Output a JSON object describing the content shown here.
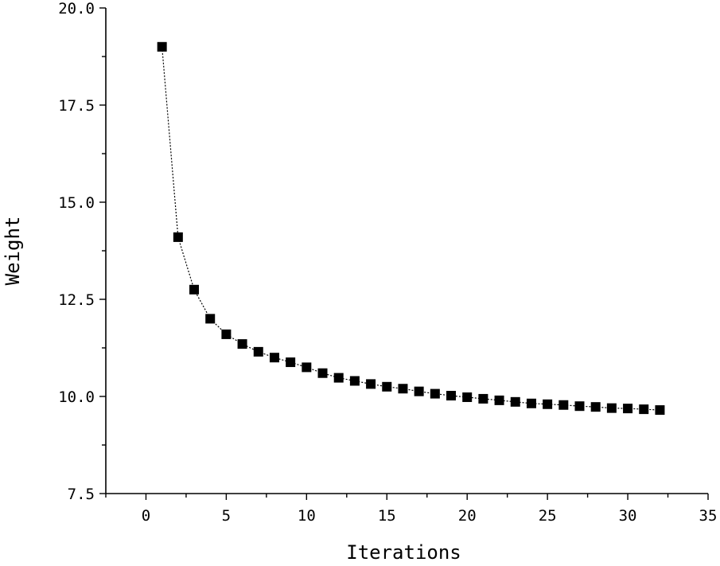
{
  "chart_data": {
    "type": "line",
    "title": "",
    "xlabel": "Iterations",
    "ylabel": "Weight",
    "xlim": [
      -2.5,
      35
    ],
    "ylim": [
      7.5,
      20.0
    ],
    "xticks": [
      0,
      5,
      10,
      15,
      20,
      25,
      30,
      35
    ],
    "yticks": [
      7.5,
      10.0,
      12.5,
      15.0,
      17.5,
      20.0
    ],
    "xtick_labels": [
      "0",
      "5",
      "10",
      "15",
      "20",
      "25",
      "30",
      "35"
    ],
    "ytick_labels": [
      "7.5",
      "10.0",
      "12.5",
      "15.0",
      "17.5",
      "20.0"
    ],
    "grid": false,
    "marker": "square",
    "line_style": "dashed",
    "color": "#000000",
    "series": [
      {
        "x": [
          1,
          2,
          3,
          4,
          5,
          6,
          7,
          8,
          9,
          10,
          11,
          12,
          13,
          14,
          15,
          16,
          17,
          18,
          19,
          20,
          21,
          22,
          23,
          24,
          25,
          26,
          27,
          28,
          29,
          30,
          31,
          32
        ],
        "values": [
          19.0,
          14.1,
          12.75,
          12.0,
          11.6,
          11.35,
          11.15,
          11.0,
          10.88,
          10.75,
          10.6,
          10.48,
          10.4,
          10.32,
          10.25,
          10.2,
          10.13,
          10.07,
          10.02,
          9.98,
          9.94,
          9.9,
          9.86,
          9.82,
          9.8,
          9.78,
          9.75,
          9.73,
          9.7,
          9.69,
          9.67,
          9.65
        ]
      }
    ]
  }
}
